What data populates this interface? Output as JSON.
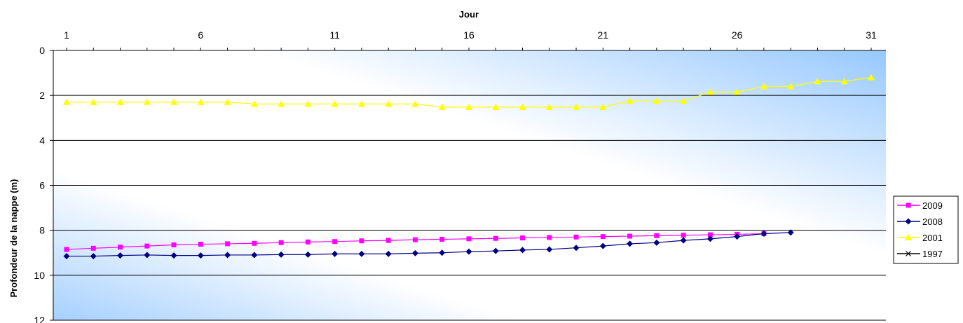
{
  "chart_data": {
    "type": "line",
    "title": "",
    "xlabel": "Jour",
    "ylabel": "Profondeur de la nappe (m)",
    "x_ticks": [
      1,
      6,
      11,
      16,
      21,
      26,
      31
    ],
    "y_ticks": [
      0,
      2,
      4,
      6,
      8,
      10,
      12
    ],
    "xlim": [
      1,
      31
    ],
    "ylim": [
      0,
      12
    ],
    "y_inverted": true,
    "grid": "horizontal",
    "legend_position": "right",
    "series": [
      {
        "name": "2009",
        "color": "#ff00ff",
        "marker": "square",
        "x": [
          1,
          2,
          3,
          4,
          5,
          6,
          7,
          8,
          9,
          10,
          11,
          12,
          13,
          14,
          15,
          16,
          17,
          18,
          19,
          20,
          21,
          22,
          23,
          24,
          25,
          26,
          27
        ],
        "y": [
          8.85,
          8.8,
          8.75,
          8.7,
          8.65,
          8.62,
          8.6,
          8.58,
          8.55,
          8.52,
          8.5,
          8.47,
          8.45,
          8.42,
          8.4,
          8.38,
          8.36,
          8.34,
          8.32,
          8.3,
          8.28,
          8.26,
          8.24,
          8.22,
          8.2,
          8.18,
          8.15
        ]
      },
      {
        "name": "2008",
        "color": "#000080",
        "marker": "diamond",
        "x": [
          1,
          2,
          3,
          4,
          5,
          6,
          7,
          8,
          9,
          10,
          11,
          12,
          13,
          14,
          15,
          16,
          17,
          18,
          19,
          20,
          21,
          22,
          23,
          24,
          25,
          26,
          27,
          28
        ],
        "y": [
          9.15,
          9.15,
          9.12,
          9.1,
          9.12,
          9.12,
          9.1,
          9.1,
          9.08,
          9.08,
          9.05,
          9.05,
          9.05,
          9.02,
          9.0,
          8.95,
          8.92,
          8.88,
          8.85,
          8.78,
          8.7,
          8.6,
          8.55,
          8.45,
          8.38,
          8.28,
          8.15,
          8.1
        ]
      },
      {
        "name": "2001",
        "color": "#ffff00",
        "marker": "triangle",
        "x": [
          1,
          2,
          3,
          4,
          5,
          6,
          7,
          8,
          9,
          10,
          11,
          12,
          13,
          14,
          15,
          16,
          17,
          18,
          19,
          20,
          21,
          22,
          23,
          24,
          25,
          26,
          27,
          28,
          29,
          30,
          31
        ],
        "y": [
          2.3,
          2.3,
          2.3,
          2.3,
          2.3,
          2.3,
          2.3,
          2.38,
          2.38,
          2.38,
          2.38,
          2.38,
          2.38,
          2.38,
          2.52,
          2.52,
          2.52,
          2.52,
          2.52,
          2.52,
          2.52,
          2.25,
          2.25,
          2.25,
          1.85,
          1.85,
          1.6,
          1.6,
          1.38,
          1.38,
          1.2
        ]
      },
      {
        "name": "1997",
        "color": "#000000",
        "marker": "x",
        "x": [],
        "y": []
      }
    ]
  }
}
